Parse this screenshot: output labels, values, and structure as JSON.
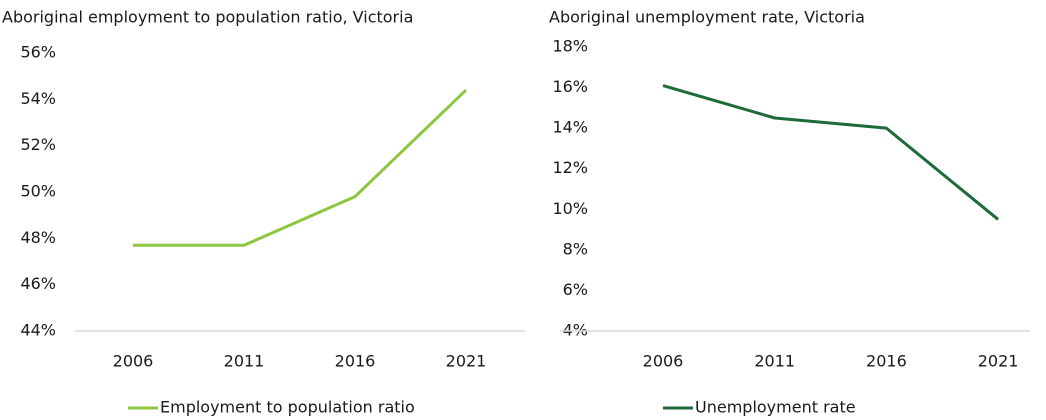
{
  "chart_data": [
    {
      "type": "line",
      "title": "Aboriginal employment to population ratio, Victoria",
      "categories": [
        "2006",
        "2011",
        "2016",
        "2021"
      ],
      "series": [
        {
          "name": "Employment to population ratio",
          "color": "#8dc63f",
          "values": [
            47.7,
            47.7,
            49.8,
            54.4
          ]
        }
      ],
      "ylim": [
        44,
        56
      ],
      "yticks": [
        {
          "value": 44,
          "label": "44%"
        },
        {
          "value": 46,
          "label": "46%"
        },
        {
          "value": 48,
          "label": "48%"
        },
        {
          "value": 50,
          "label": "50%"
        },
        {
          "value": 52,
          "label": "52%"
        },
        {
          "value": 54,
          "label": "54%"
        },
        {
          "value": 56,
          "label": "56%"
        }
      ],
      "grid": false,
      "legend": "bottom"
    },
    {
      "type": "line",
      "title": "Aboriginal unemployment rate, Victoria",
      "categories": [
        "2006",
        "2011",
        "2016",
        "2021"
      ],
      "series": [
        {
          "name": "Unemployment rate",
          "color": "#1e6b3a",
          "values": [
            16.1,
            14.5,
            14.0,
            9.5
          ]
        }
      ],
      "ylim": [
        4,
        18
      ],
      "yticks": [
        {
          "value": 4,
          "label": "4%"
        },
        {
          "value": 6,
          "label": "6%"
        },
        {
          "value": 8,
          "label": "8%"
        },
        {
          "value": 10,
          "label": "10%"
        },
        {
          "value": 12,
          "label": "12%"
        },
        {
          "value": 14,
          "label": "14%"
        },
        {
          "value": 16,
          "label": "16%"
        },
        {
          "value": 18,
          "label": "18%"
        }
      ],
      "grid": false,
      "legend": "bottom"
    }
  ]
}
